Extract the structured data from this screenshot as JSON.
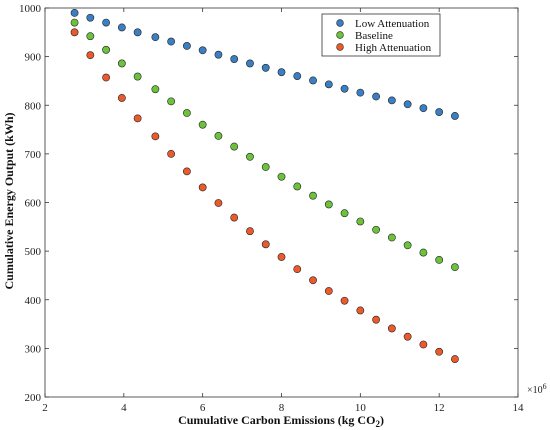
{
  "chart_data": {
    "type": "scatter",
    "title": "",
    "xlabel_main": "Cumulative Carbon Emissions (kg CO",
    "xlabel_sub": "2",
    "xlabel_close": ")",
    "ylabel": "Cumulative Energy Output (kWh)",
    "x_exponent_base": "×10",
    "x_exponent_power": "6",
    "xlim": [
      2,
      14
    ],
    "ylim": [
      200,
      1000
    ],
    "xticks": [
      2,
      4,
      6,
      8,
      10,
      12,
      14
    ],
    "yticks": [
      200,
      300,
      400,
      500,
      600,
      700,
      800,
      900,
      1000
    ],
    "xtick_labels": [
      "2",
      "4",
      "6",
      "8",
      "10",
      "12",
      "14"
    ],
    "ytick_labels": [
      "200",
      "300",
      "400",
      "500",
      "600",
      "700",
      "800",
      "900",
      "1000"
    ],
    "grid": false,
    "legend_position": "top-right",
    "x": [
      2.75,
      3.15,
      3.55,
      3.95,
      4.35,
      4.8,
      5.2,
      5.6,
      6.0,
      6.4,
      6.8,
      7.2,
      7.6,
      8.0,
      8.4,
      8.8,
      9.2,
      9.6,
      10.0,
      10.4,
      10.8,
      11.2,
      11.6,
      12.0,
      12.4
    ],
    "series": [
      {
        "name": "Low Attenuation",
        "color": "#3a7fc4",
        "y": [
          990,
          980,
          970,
          960,
          950,
          940,
          931,
          922,
          913,
          904,
          895,
          886,
          877,
          868,
          860,
          851,
          843,
          834,
          826,
          818,
          810,
          802,
          794,
          786,
          778
        ]
      },
      {
        "name": "Baseline",
        "color": "#6cc23a",
        "y": [
          970,
          942,
          914,
          886,
          859,
          833,
          808,
          784,
          760,
          737,
          715,
          694,
          673,
          653,
          633,
          614,
          596,
          578,
          561,
          544,
          528,
          512,
          497,
          482,
          467
        ]
      },
      {
        "name": "High Attenuation",
        "color": "#ec5a2c",
        "y": [
          950,
          903,
          857,
          815,
          773,
          736,
          700,
          664,
          631,
          599,
          569,
          541,
          514,
          488,
          463,
          440,
          418,
          398,
          378,
          359,
          341,
          324,
          308,
          293,
          278
        ]
      }
    ]
  }
}
